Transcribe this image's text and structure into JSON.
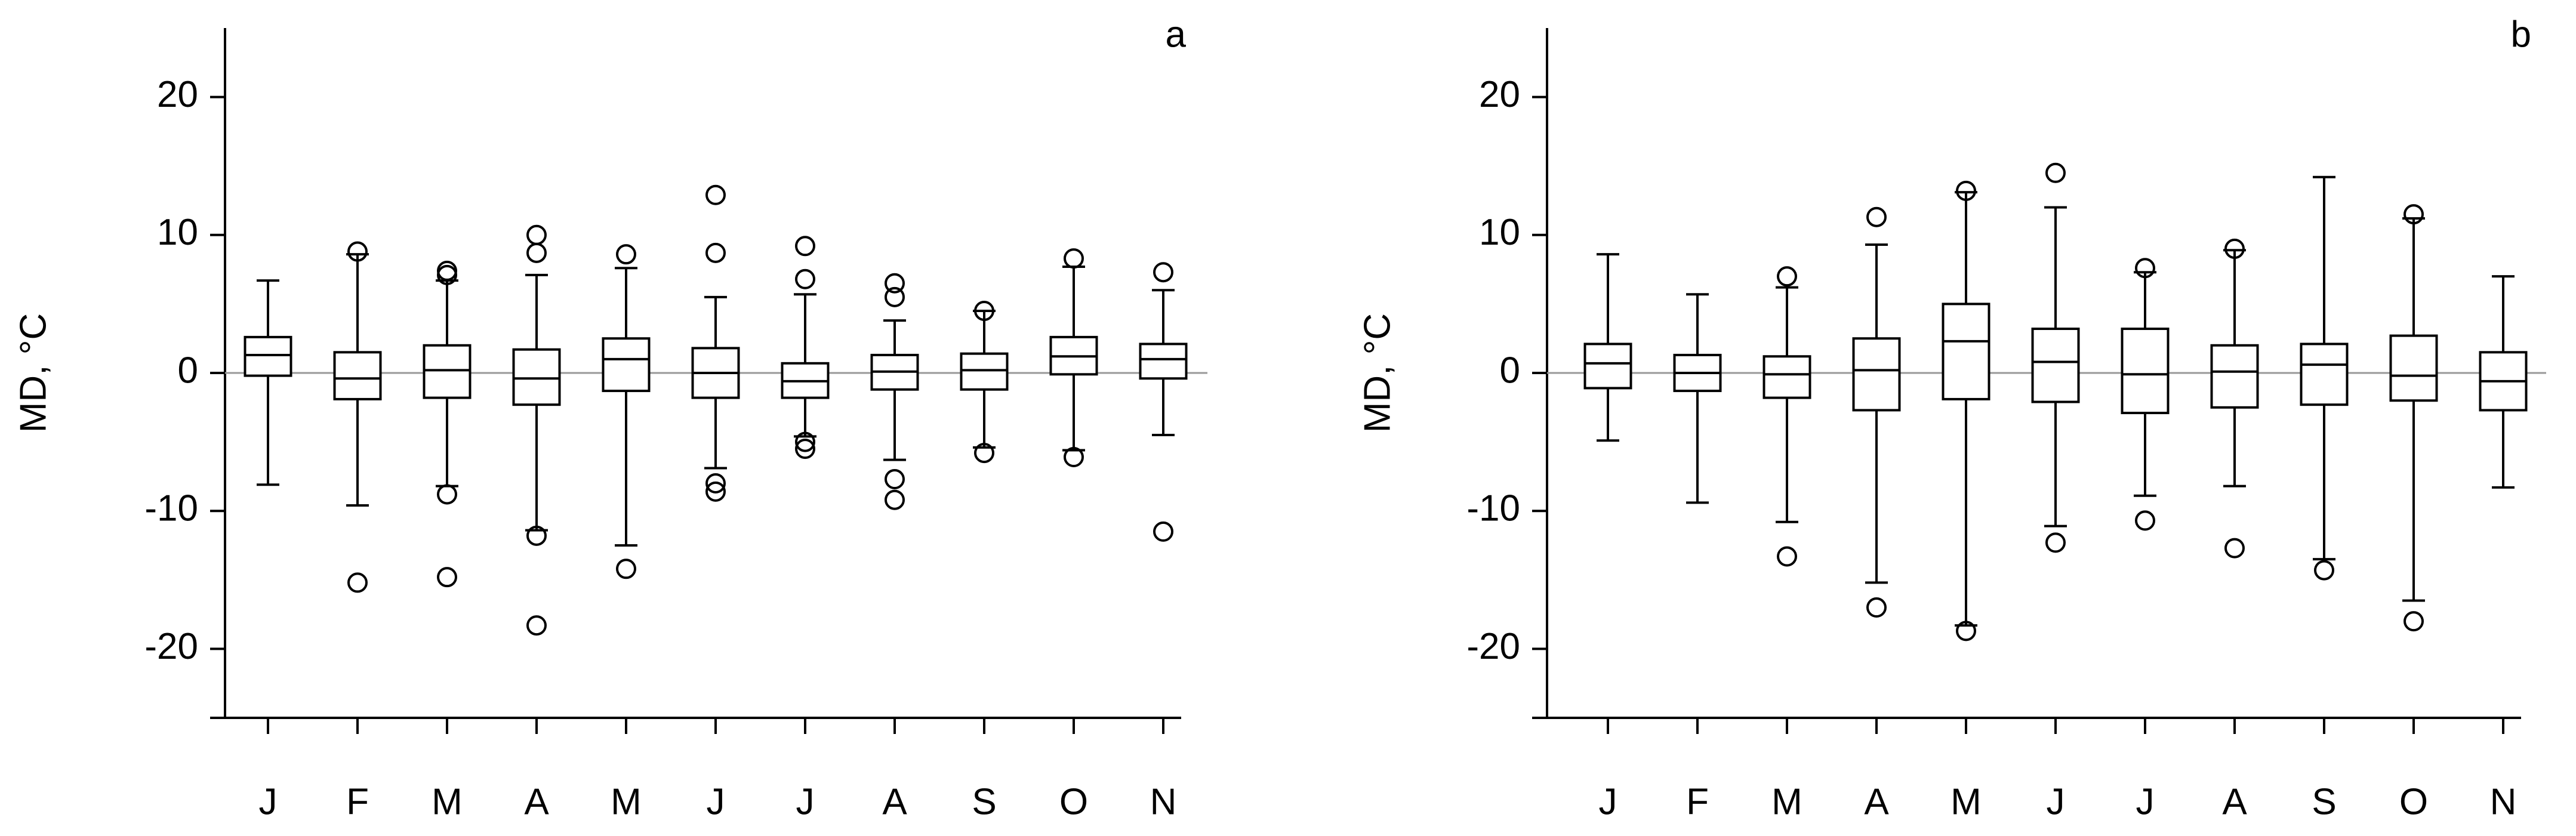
{
  "chart_data": [
    {
      "type": "box",
      "label": "a",
      "y_label": "MD, °C",
      "categories": [
        "J",
        "F",
        "M",
        "A",
        "M",
        "J",
        "J",
        "A",
        "S",
        "O",
        "N"
      ],
      "ylim": [
        -25,
        25
      ],
      "yticks": [
        -20,
        -10,
        0,
        10,
        20
      ],
      "reference_line": 0,
      "color": "#000000",
      "boxes": [
        {
          "whisker_low": -8.1,
          "q1": -0.2,
          "median": 1.3,
          "q3": 2.6,
          "whisker_high": 6.7,
          "outliers": []
        },
        {
          "whisker_low": -9.6,
          "q1": -1.9,
          "median": -0.4,
          "q3": 1.5,
          "whisker_high": 8.6,
          "outliers": [
            8.8,
            -15.2
          ]
        },
        {
          "whisker_low": -8.2,
          "q1": -1.8,
          "median": 0.2,
          "q3": 2.0,
          "whisker_high": 6.7,
          "outliers": [
            7.4,
            7.1,
            -8.8,
            -14.8
          ]
        },
        {
          "whisker_low": -11.4,
          "q1": -2.3,
          "median": -0.4,
          "q3": 1.7,
          "whisker_high": 7.1,
          "outliers": [
            10.0,
            8.7,
            -11.8,
            -18.3
          ]
        },
        {
          "whisker_low": -12.5,
          "q1": -1.3,
          "median": 1.0,
          "q3": 2.5,
          "whisker_high": 7.6,
          "outliers": [
            8.6,
            -14.2
          ]
        },
        {
          "whisker_low": -6.9,
          "q1": -1.8,
          "median": 0.0,
          "q3": 1.8,
          "whisker_high": 5.5,
          "outliers": [
            12.9,
            8.7,
            -8.0,
            -8.6
          ]
        },
        {
          "whisker_low": -4.6,
          "q1": -1.8,
          "median": -0.6,
          "q3": 0.7,
          "whisker_high": 5.7,
          "outliers": [
            9.2,
            6.8,
            -5.0,
            -5.5
          ]
        },
        {
          "whisker_low": -6.3,
          "q1": -1.2,
          "median": 0.1,
          "q3": 1.3,
          "whisker_high": 3.8,
          "outliers": [
            6.5,
            5.5,
            -7.7,
            -9.2
          ]
        },
        {
          "whisker_low": -5.4,
          "q1": -1.2,
          "median": 0.2,
          "q3": 1.4,
          "whisker_high": 4.5,
          "outliers": [
            4.5,
            -5.8
          ]
        },
        {
          "whisker_low": -5.6,
          "q1": -0.1,
          "median": 1.2,
          "q3": 2.6,
          "whisker_high": 7.7,
          "outliers": [
            8.3,
            -6.1
          ]
        },
        {
          "whisker_low": -4.5,
          "q1": -0.4,
          "median": 1.0,
          "q3": 2.1,
          "whisker_high": 6.0,
          "outliers": [
            7.3,
            -11.5
          ]
        }
      ]
    },
    {
      "type": "box",
      "label": "b",
      "y_label": "MD, °C",
      "categories": [
        "J",
        "F",
        "M",
        "A",
        "M",
        "J",
        "J",
        "A",
        "S",
        "O",
        "N"
      ],
      "ylim": [
        -25,
        25
      ],
      "yticks": [
        -20,
        -10,
        0,
        10,
        20
      ],
      "reference_line": 0,
      "color": "#000000",
      "boxes": [
        {
          "whisker_low": -4.9,
          "q1": -1.1,
          "median": 0.7,
          "q3": 2.1,
          "whisker_high": 8.6,
          "outliers": []
        },
        {
          "whisker_low": -9.4,
          "q1": -1.3,
          "median": 0.0,
          "q3": 1.3,
          "whisker_high": 5.7,
          "outliers": []
        },
        {
          "whisker_low": -10.8,
          "q1": -1.8,
          "median": -0.1,
          "q3": 1.2,
          "whisker_high": 6.2,
          "outliers": [
            7.0,
            -13.3
          ]
        },
        {
          "whisker_low": -15.2,
          "q1": -2.7,
          "median": 0.2,
          "q3": 2.5,
          "whisker_high": 9.3,
          "outliers": [
            11.3,
            -17.0
          ]
        },
        {
          "whisker_low": -18.3,
          "q1": -1.9,
          "median": 2.3,
          "q3": 5.0,
          "whisker_high": 13.1,
          "outliers": [
            13.2,
            -18.7
          ]
        },
        {
          "whisker_low": -11.1,
          "q1": -2.1,
          "median": 0.8,
          "q3": 3.2,
          "whisker_high": 12.0,
          "outliers": [
            14.5,
            -12.3
          ]
        },
        {
          "whisker_low": -8.9,
          "q1": -2.9,
          "median": -0.1,
          "q3": 3.2,
          "whisker_high": 7.3,
          "outliers": [
            7.6,
            -10.7
          ]
        },
        {
          "whisker_low": -8.2,
          "q1": -2.5,
          "median": 0.1,
          "q3": 2.0,
          "whisker_high": 8.9,
          "outliers": [
            9.0,
            -12.7
          ]
        },
        {
          "whisker_low": -13.5,
          "q1": -2.3,
          "median": 0.6,
          "q3": 2.1,
          "whisker_high": 14.2,
          "outliers": [
            -14.3
          ]
        },
        {
          "whisker_low": -16.5,
          "q1": -2.0,
          "median": -0.2,
          "q3": 2.7,
          "whisker_high": 11.2,
          "outliers": [
            11.5,
            -18.0
          ]
        },
        {
          "whisker_low": -8.3,
          "q1": -2.7,
          "median": -0.6,
          "q3": 1.5,
          "whisker_high": 7.0,
          "outliers": []
        }
      ]
    }
  ]
}
